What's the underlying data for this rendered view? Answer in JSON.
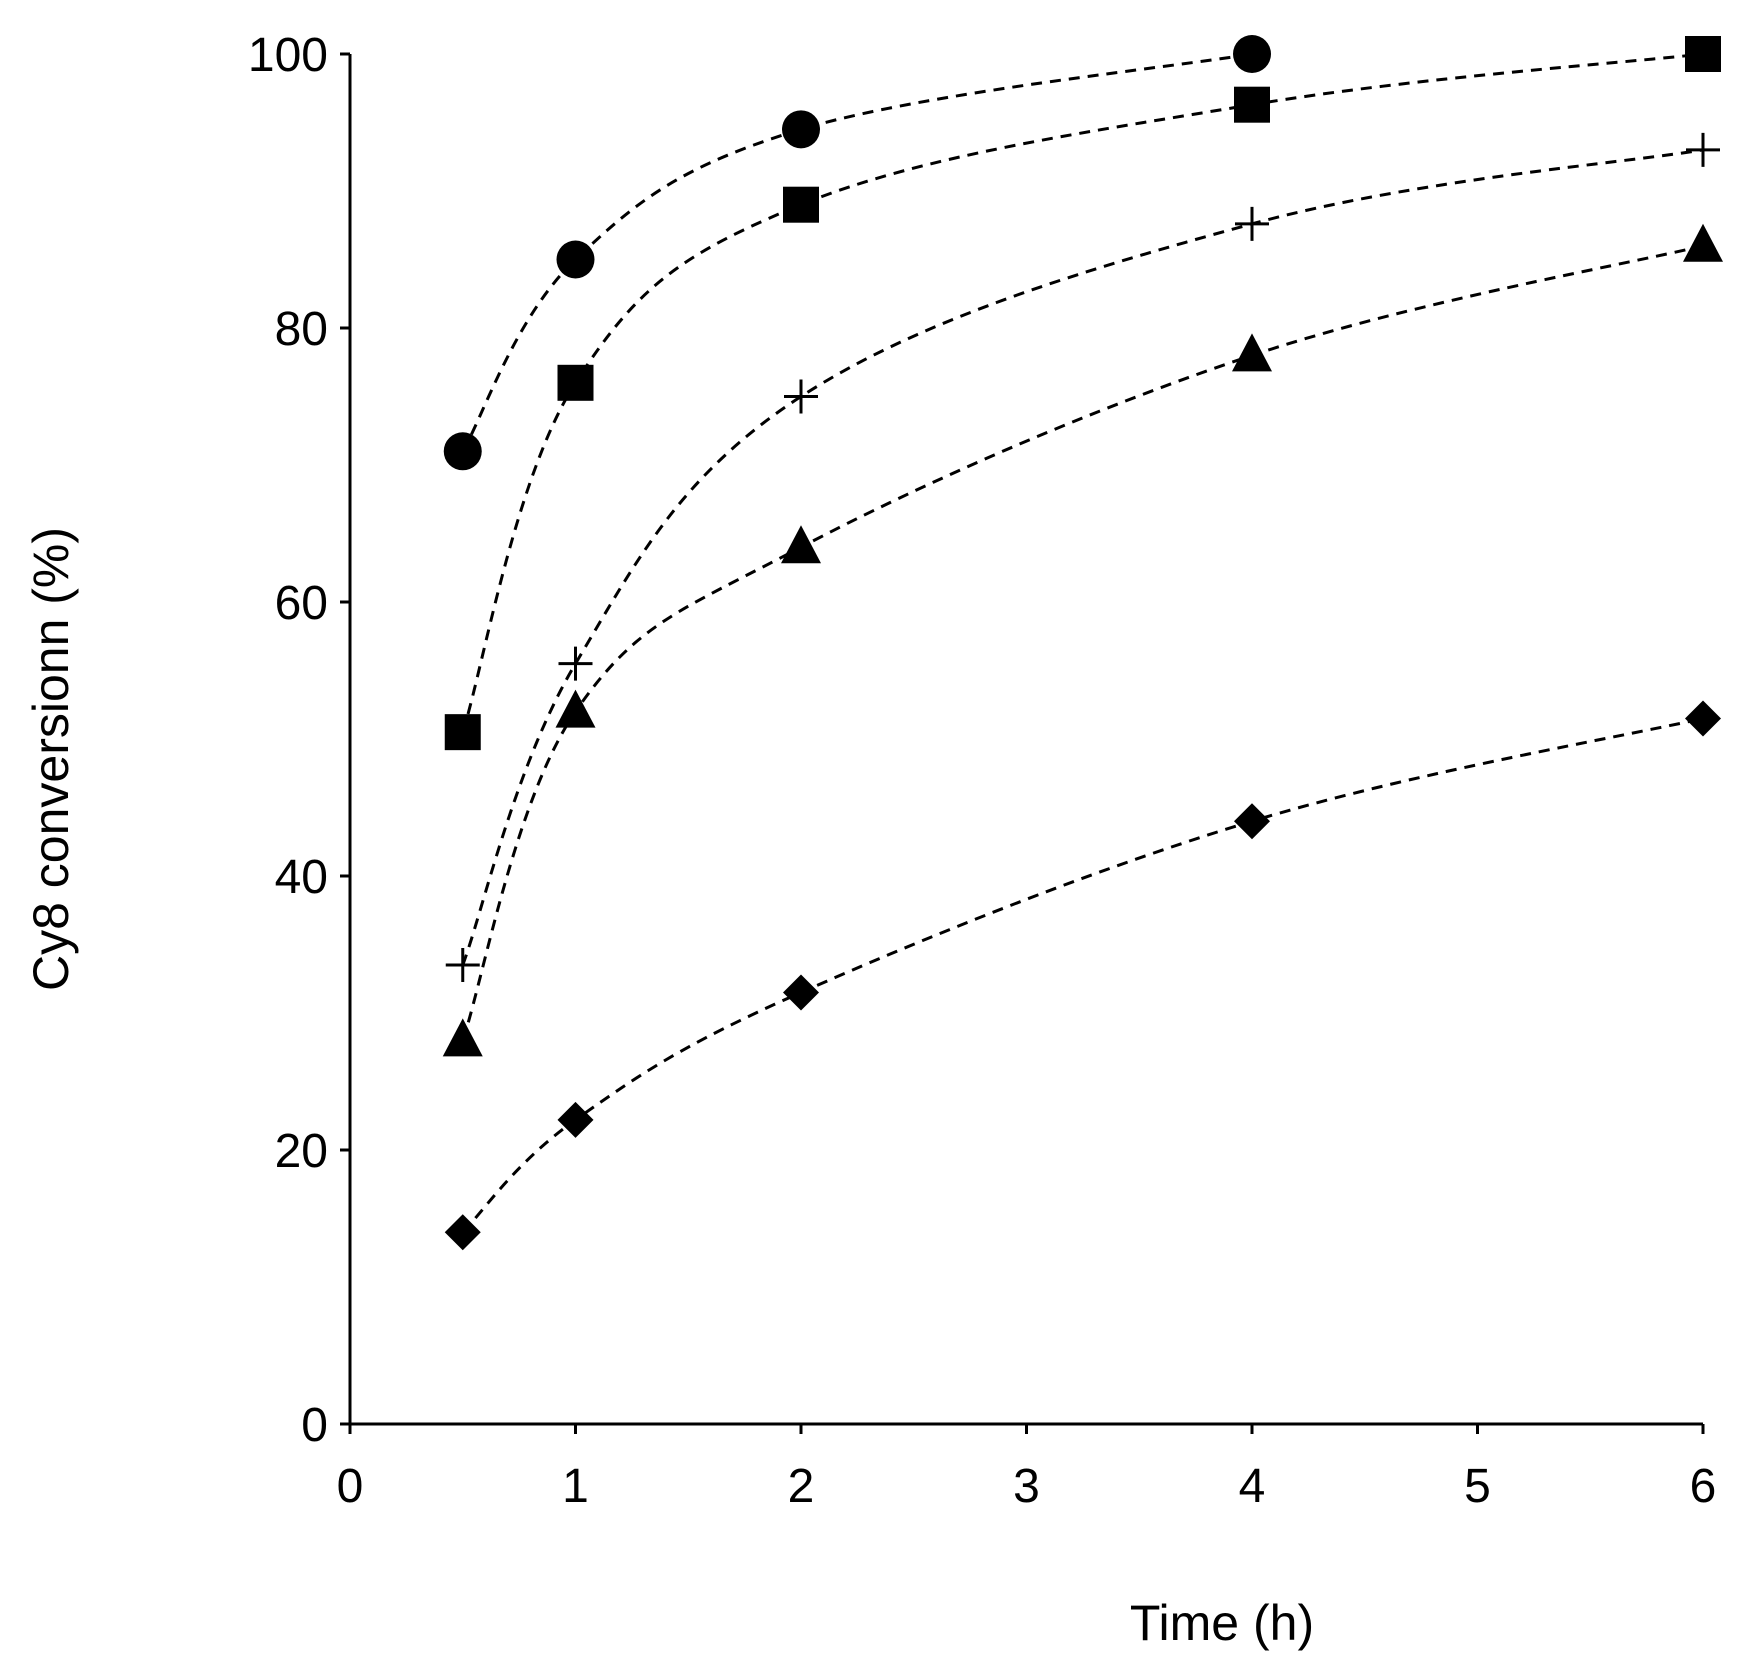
{
  "chart_data": {
    "type": "line",
    "title": "",
    "xlabel": "Time (h)",
    "ylabel": "Cy8 conversionn (%)",
    "xlim": [
      0,
      6
    ],
    "ylim": [
      0,
      100
    ],
    "xticks": [
      0,
      1,
      2,
      3,
      4,
      5,
      6
    ],
    "yticks": [
      0,
      20,
      40,
      60,
      80,
      100
    ],
    "grid": false,
    "legend": "none",
    "colors": {
      "ink": "#000000",
      "background": "#ffffff"
    },
    "series": [
      {
        "name": "circle",
        "marker": "circle",
        "line": "dashed",
        "x": [
          0.5,
          1,
          2,
          4
        ],
        "y": [
          71,
          85,
          94.5,
          100
        ]
      },
      {
        "name": "square",
        "marker": "square",
        "line": "dashed",
        "x": [
          0.5,
          1,
          2,
          4,
          6
        ],
        "y": [
          50.5,
          76,
          89,
          96.3,
          100
        ]
      },
      {
        "name": "plus",
        "marker": "plus",
        "line": "dashed",
        "x": [
          0.5,
          1,
          2,
          4,
          6
        ],
        "y": [
          33.5,
          55.5,
          75,
          87.6,
          93
        ]
      },
      {
        "name": "triangle",
        "marker": "triangle",
        "line": "dashed",
        "x": [
          0.5,
          1,
          2,
          4,
          6
        ],
        "y": [
          28,
          52,
          64,
          78,
          86
        ]
      },
      {
        "name": "diamond",
        "marker": "diamond",
        "line": "dashed",
        "x": [
          0.5,
          1,
          2,
          4,
          6
        ],
        "y": [
          14,
          22.2,
          31.5,
          44,
          51.5
        ]
      }
    ]
  }
}
